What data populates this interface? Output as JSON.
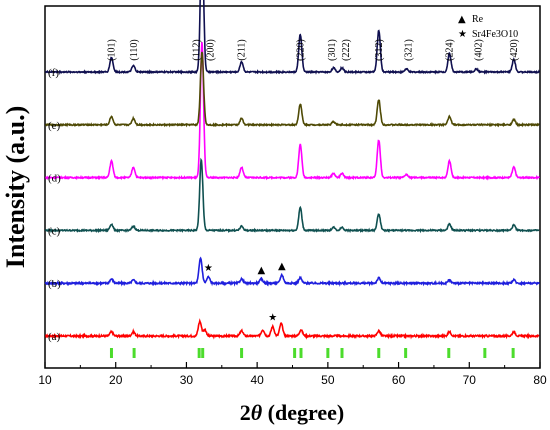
{
  "chart_data": {
    "type": "line",
    "xlabel_main": "2",
    "xlabel_theta": "θ",
    "xlabel_unit": " (degree)",
    "ylabel": "Intensity (a.u.)",
    "xlim": [
      10,
      80
    ],
    "x_ticks": [
      10,
      20,
      30,
      40,
      50,
      60,
      70,
      80
    ],
    "grid": false,
    "series": [
      {
        "name": "(a)",
        "color": "#ff0000",
        "baseline": 0.05,
        "noise": 0.008,
        "peaks": [
          [
            19.4,
            0.02
          ],
          [
            22.5,
            0.02
          ],
          [
            31.9,
            0.07
          ],
          [
            32.6,
            0.03
          ],
          [
            37.8,
            0.025
          ],
          [
            40.8,
            0.03
          ],
          [
            42.2,
            0.045
          ],
          [
            43.4,
            0.06
          ],
          [
            46.2,
            0.03
          ],
          [
            57.2,
            0.025
          ],
          [
            67.2,
            0.02
          ],
          [
            76.3,
            0.02
          ]
        ]
      },
      {
        "name": "(b)",
        "color": "#1f1fdd",
        "baseline": 0.05,
        "noise": 0.008,
        "peaks": [
          [
            19.4,
            0.02
          ],
          [
            22.5,
            0.015
          ],
          [
            32.0,
            0.12
          ],
          [
            33.1,
            0.03
          ],
          [
            37.8,
            0.02
          ],
          [
            40.6,
            0.02
          ],
          [
            43.5,
            0.04
          ],
          [
            46.1,
            0.025
          ],
          [
            57.2,
            0.025
          ],
          [
            67.2,
            0.015
          ],
          [
            76.3,
            0.015
          ]
        ]
      },
      {
        "name": "(c)",
        "color": "#0f5050",
        "baseline": 0.05,
        "noise": 0.006,
        "peaks": [
          [
            19.4,
            0.03
          ],
          [
            22.5,
            0.02
          ],
          [
            32.1,
            0.34
          ],
          [
            37.8,
            0.02
          ],
          [
            46.1,
            0.11
          ],
          [
            50.8,
            0.015
          ],
          [
            52.0,
            0.015
          ],
          [
            57.2,
            0.08
          ],
          [
            67.2,
            0.03
          ],
          [
            76.3,
            0.025
          ]
        ]
      },
      {
        "name": "(d)",
        "color": "#ff00ff",
        "baseline": 0.05,
        "noise": 0.006,
        "peaks": [
          [
            19.4,
            0.08
          ],
          [
            22.5,
            0.05
          ],
          [
            32.2,
            0.65
          ],
          [
            37.8,
            0.05
          ],
          [
            46.1,
            0.16
          ],
          [
            50.8,
            0.02
          ],
          [
            52.0,
            0.02
          ],
          [
            57.2,
            0.18
          ],
          [
            61.1,
            0.015
          ],
          [
            67.2,
            0.08
          ],
          [
            76.3,
            0.05
          ]
        ]
      },
      {
        "name": "(e)",
        "color": "#4f4a05",
        "baseline": 0.05,
        "noise": 0.006,
        "peaks": [
          [
            19.4,
            0.04
          ],
          [
            22.5,
            0.03
          ],
          [
            32.2,
            0.35
          ],
          [
            37.8,
            0.03
          ],
          [
            46.1,
            0.1
          ],
          [
            50.8,
            0.015
          ],
          [
            57.2,
            0.12
          ],
          [
            67.2,
            0.04
          ],
          [
            76.3,
            0.025
          ]
        ]
      },
      {
        "name": "(f)",
        "color": "#101050",
        "baseline": 0.05,
        "noise": 0.006,
        "peaks": [
          [
            19.4,
            0.07
          ],
          [
            22.5,
            0.03
          ],
          [
            32.2,
            0.68
          ],
          [
            37.8,
            0.05
          ],
          [
            46.1,
            0.18
          ],
          [
            50.8,
            0.02
          ],
          [
            52.0,
            0.02
          ],
          [
            57.2,
            0.2
          ],
          [
            61.1,
            0.015
          ],
          [
            67.2,
            0.09
          ],
          [
            71.0,
            0.015
          ],
          [
            76.3,
            0.06
          ]
        ]
      }
    ],
    "hkl_labels": [
      {
        "x": 19.4,
        "text": "(101)"
      },
      {
        "x": 22.6,
        "text": "(110)"
      },
      {
        "x": 31.4,
        "text": "(112)"
      },
      {
        "x": 33.4,
        "text": "(200)"
      },
      {
        "x": 37.8,
        "text": "(211)"
      },
      {
        "x": 46.1,
        "text": "(220)"
      },
      {
        "x": 50.6,
        "text": "(301)"
      },
      {
        "x": 52.6,
        "text": "(222)"
      },
      {
        "x": 57.2,
        "text": "(312)"
      },
      {
        "x": 61.4,
        "text": "(321)"
      },
      {
        "x": 67.2,
        "text": "(224)"
      },
      {
        "x": 71.3,
        "text": "(402)"
      },
      {
        "x": 76.3,
        "text": "(420)"
      }
    ],
    "reference_lines": {
      "color": "#4cdc2c",
      "positions": [
        19.4,
        22.6,
        31.8,
        32.3,
        37.8,
        45.3,
        46.2,
        50.0,
        52.0,
        57.2,
        61.0,
        67.1,
        72.2,
        76.2
      ]
    },
    "annotations": [
      {
        "series": "(b)",
        "symbol": "★",
        "x": 33.1
      },
      {
        "series": "(b)",
        "symbol": "▲",
        "x": 40.6
      },
      {
        "series": "(b)",
        "symbol": "▲",
        "x": 43.5
      },
      {
        "series": "(a)",
        "symbol": "★",
        "x": 42.2
      }
    ],
    "legend": {
      "position": "top-right",
      "items": [
        {
          "symbol": "▲",
          "label": "Re"
        },
        {
          "symbol": "★",
          "label": "Sr4Fe3O10"
        }
      ]
    }
  }
}
